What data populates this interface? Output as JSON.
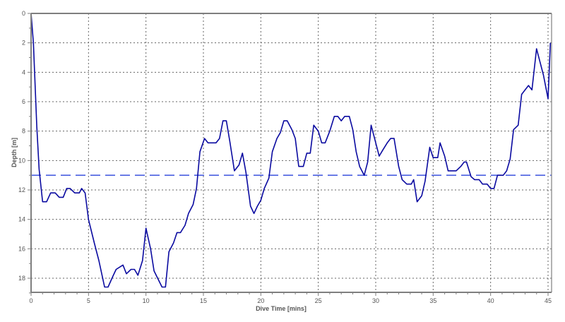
{
  "chart_data": {
    "type": "line",
    "title": "",
    "xlabel": "Dive Time [mins]",
    "ylabel": "Depth [m]",
    "xlim": [
      0,
      45.3
    ],
    "ylim": [
      19,
      0
    ],
    "y_inverted": true,
    "grid": true,
    "legend": null,
    "x_ticks": [
      0,
      5,
      10,
      15,
      20,
      25,
      30,
      35,
      40,
      45
    ],
    "y_ticks": [
      0,
      2,
      4,
      6,
      8,
      10,
      12,
      14,
      16,
      18
    ],
    "reference_lines": [
      {
        "name": "average-depth",
        "orientation": "horizontal",
        "value": 11.0,
        "style": "dashed",
        "color": "#4a5fe0"
      }
    ],
    "series": [
      {
        "name": "Depth profile",
        "color": "#0a0aa0",
        "x": [
          0,
          0.2,
          0.5,
          0.7,
          1.0,
          1.35,
          1.7,
          2.1,
          2.45,
          2.8,
          3.1,
          3.4,
          3.8,
          4.2,
          4.4,
          4.7,
          5.0,
          5.5,
          5.9,
          6.4,
          6.7,
          7.1,
          7.4,
          8.0,
          8.3,
          8.7,
          9.0,
          9.3,
          9.7,
          10.0,
          10.4,
          10.7,
          11.4,
          11.7,
          12.0,
          12.4,
          12.7,
          13.0,
          13.4,
          13.7,
          14.1,
          14.4,
          14.7,
          15.1,
          15.4,
          16.1,
          16.4,
          16.7,
          17.0,
          17.3,
          17.7,
          18.1,
          18.4,
          18.7,
          19.1,
          19.4,
          19.7,
          20.0,
          20.3,
          20.7,
          21.0,
          21.4,
          21.7,
          22.0,
          22.3,
          22.7,
          23.0,
          23.3,
          23.7,
          24.0,
          24.3,
          24.6,
          25.0,
          25.3,
          25.6,
          26.0,
          26.4,
          26.7,
          27.0,
          27.3,
          27.7,
          28.0,
          28.3,
          28.6,
          29.0,
          29.3,
          29.6,
          30.0,
          30.3,
          30.6,
          31.0,
          31.3,
          31.6,
          32.0,
          32.3,
          32.7,
          33.1,
          33.3,
          33.6,
          34.0,
          34.3,
          34.7,
          35.0,
          35.4,
          35.6,
          36.0,
          36.3,
          37.0,
          37.4,
          37.7,
          37.9,
          38.3,
          38.6,
          39.0,
          39.3,
          39.7,
          40.0,
          40.3,
          40.6,
          41.1,
          41.4,
          41.7,
          42.0,
          42.4,
          42.7,
          43.0,
          43.3,
          43.6,
          44.0,
          44.3,
          44.6,
          45.0,
          45.2
        ],
        "y": [
          0,
          2,
          7.7,
          10.6,
          12.8,
          12.8,
          12.2,
          12.2,
          12.5,
          12.5,
          11.9,
          11.9,
          12.2,
          12.2,
          11.9,
          12.2,
          14.0,
          15.6,
          16.8,
          18.6,
          18.6,
          17.9,
          17.4,
          17.1,
          17.7,
          17.4,
          17.4,
          17.8,
          16.8,
          14.6,
          16.0,
          17.5,
          18.6,
          18.6,
          16.2,
          15.6,
          14.9,
          14.9,
          14.4,
          13.6,
          13.0,
          11.9,
          9.4,
          8.5,
          8.8,
          8.8,
          8.5,
          7.3,
          7.3,
          8.7,
          10.7,
          10.3,
          9.5,
          10.8,
          13.1,
          13.6,
          13.1,
          12.7,
          11.9,
          11.2,
          9.4,
          8.5,
          8.1,
          7.3,
          7.3,
          7.9,
          8.5,
          10.4,
          10.4,
          9.5,
          9.5,
          7.6,
          8.0,
          8.8,
          8.8,
          8.0,
          7.0,
          7.0,
          7.3,
          7.0,
          7.0,
          7.9,
          9.4,
          10.4,
          11.0,
          10.1,
          7.6,
          8.8,
          9.7,
          9.3,
          8.8,
          8.5,
          8.5,
          10.4,
          11.3,
          11.6,
          11.6,
          11.3,
          12.8,
          12.4,
          11.4,
          9.1,
          9.8,
          9.8,
          8.8,
          9.7,
          10.7,
          10.7,
          10.4,
          10.1,
          10.1,
          11.1,
          11.3,
          11.3,
          11.6,
          11.6,
          11.9,
          11.9,
          11.0,
          11.0,
          10.7,
          9.9,
          7.9,
          7.6,
          5.5,
          5.2,
          4.9,
          5.2,
          2.4,
          3.3,
          4.2,
          5.8,
          2.0
        ]
      }
    ]
  },
  "colors": {
    "frame": "#7f7f7f",
    "grid": "#666666",
    "tick_label": "#555555"
  }
}
